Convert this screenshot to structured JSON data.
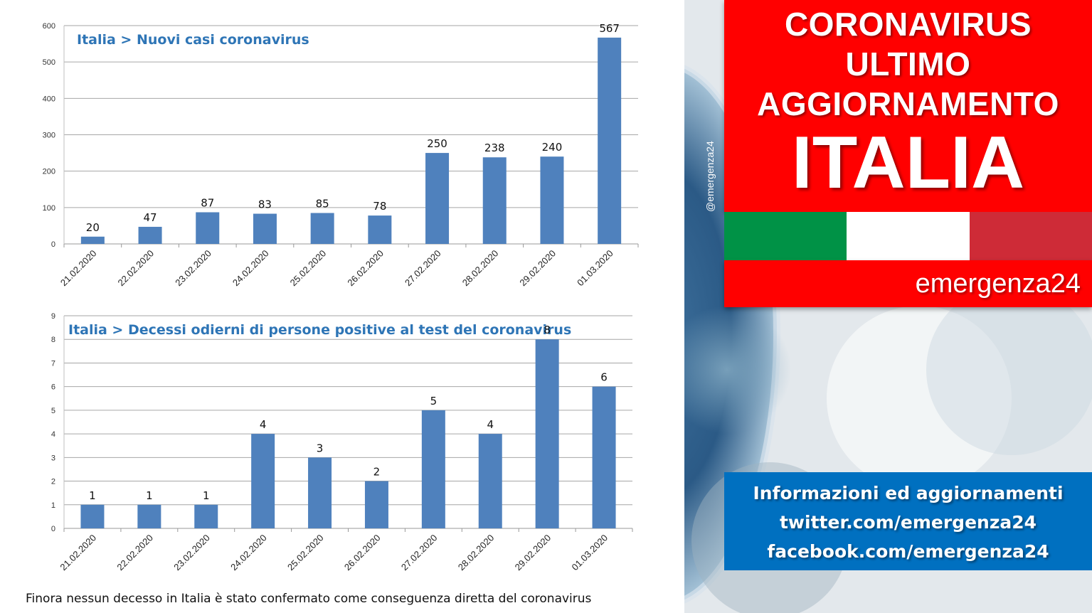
{
  "charts": {
    "new_cases_title": "Italia > Nuovi casi coronavirus",
    "deaths_title": "Italia > Decessi odierni di persone positive al test del coronavirus",
    "footnote": "Finora nessun decesso in Italia è stato confermato come conseguenza diretta del coronavirus"
  },
  "chart_data": [
    {
      "type": "bar",
      "title": "Italia > Nuovi casi coronavirus",
      "xlabel": "",
      "ylabel": "",
      "categories": [
        "21.02.2020",
        "22.02.2020",
        "23.02.2020",
        "24.02.2020",
        "25.02.2020",
        "26.02.2020",
        "27.02.2020",
        "28.02.2020",
        "29.02.2020",
        "01.03.2020"
      ],
      "values": [
        20,
        47,
        87,
        83,
        85,
        78,
        250,
        238,
        240,
        567
      ],
      "ylim": [
        0,
        600
      ],
      "yticks": [
        0,
        100,
        200,
        300,
        400,
        500,
        600
      ],
      "grid": true,
      "data_labels": true,
      "bar_color": "#4f81bd"
    },
    {
      "type": "bar",
      "title": "Italia > Decessi odierni di persone positive al test del coronavirus",
      "xlabel": "",
      "ylabel": "",
      "categories": [
        "21.02.2020",
        "22.02.2020",
        "23.02.2020",
        "24.02.2020",
        "25.02.2020",
        "26.02.2020",
        "27.02.2020",
        "28.02.2020",
        "29.02.2020",
        "01.03.2020"
      ],
      "values": [
        1,
        1,
        1,
        4,
        3,
        2,
        5,
        4,
        8,
        6
      ],
      "ylim": [
        0,
        9
      ],
      "yticks": [
        0,
        1,
        2,
        3,
        4,
        5,
        6,
        7,
        8,
        9
      ],
      "grid": true,
      "data_labels": true,
      "bar_color": "#4f81bd"
    }
  ],
  "banner": {
    "line1": "CORONAVIRUS",
    "line2": "ULTIMO",
    "line3": "AGGIORNAMENTO",
    "country": "ITALIA",
    "brand": "emergenza24",
    "handle": "@emergenza24"
  },
  "flag": {
    "green": "#009246",
    "white": "#ffffff",
    "red": "#ce2b37"
  },
  "info": {
    "line1": "Informazioni ed aggiornamenti",
    "line2": "twitter.com/emergenza24",
    "line3": "facebook.com/emergenza24"
  },
  "colors": {
    "banner_red": "#ff0000",
    "info_blue": "#0070c0",
    "title_blue": "#2e75b6",
    "bar_blue": "#4f81bd"
  }
}
